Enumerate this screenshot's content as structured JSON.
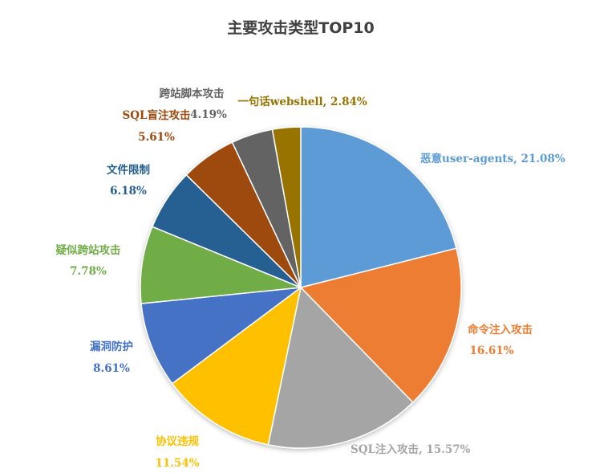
{
  "chart_data": {
    "type": "pie",
    "title": "主要攻击类型TOP10",
    "start_angle_deg": 0,
    "direction": "clockwise",
    "slices": [
      {
        "name": "恶意user-agents",
        "value": 21.08,
        "value_text": "21.08%",
        "color": "#5B9BD5",
        "label_text": "恶意user-agents, 21.08%",
        "label_color": "#5B9BD5"
      },
      {
        "name": "命令注入攻击",
        "value": 16.61,
        "value_text": "16.61%",
        "color": "#ED7D31",
        "label_text": "命令注入攻击",
        "label_color": "#ED7D31"
      },
      {
        "name": "SQL注入攻击",
        "value": 15.57,
        "value_text": "15.57%",
        "color": "#A5A5A5",
        "label_text": "SQL注入攻击, 15.57%",
        "label_color": "#A5A5A5"
      },
      {
        "name": "协议违规",
        "value": 11.54,
        "value_text": "11.54%",
        "color": "#FFC000",
        "label_text": "协议违规",
        "label_color": "#FFC000"
      },
      {
        "name": "漏洞防护",
        "value": 8.61,
        "value_text": "8.61%",
        "color": "#4472C4",
        "label_text": "漏洞防护",
        "label_color": "#4472C4"
      },
      {
        "name": "疑似跨站攻击",
        "value": 7.78,
        "value_text": "7.78%",
        "color": "#70AD47",
        "label_text": "疑似跨站攻击",
        "label_color": "#70AD47"
      },
      {
        "name": "文件限制",
        "value": 6.18,
        "value_text": "6.18%",
        "color": "#255E91",
        "label_text": "文件限制",
        "label_color": "#255E91"
      },
      {
        "name": "SQL盲注攻击",
        "value": 5.61,
        "value_text": "5.61%",
        "color": "#9E480E",
        "label_text": "SQL盲注攻击",
        "label_color": "#9E480E"
      },
      {
        "name": "跨站脚本攻击",
        "value": 4.19,
        "value_text": "4.19%",
        "color": "#636363",
        "label_text": "跨站脚本攻击",
        "label_color": "#636363"
      },
      {
        "name": "一句话webshell",
        "value": 2.84,
        "value_text": "2.84%",
        "color": "#997300",
        "label_text": "一句话webshell, 2.84%",
        "label_color": "#997300"
      }
    ],
    "legend": "none"
  }
}
